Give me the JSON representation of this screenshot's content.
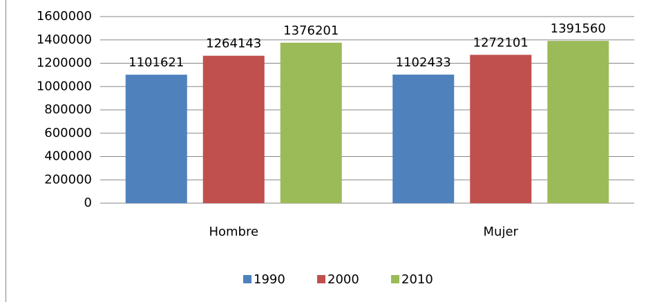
{
  "chart_data": {
    "type": "bar",
    "categories": [
      "Hombre",
      "Mujer"
    ],
    "series": [
      {
        "name": "1990",
        "color": "#4f81bd",
        "values": [
          1101621,
          1102433
        ]
      },
      {
        "name": "2000",
        "color": "#c0504d",
        "values": [
          1264143,
          1272101
        ]
      },
      {
        "name": "2010",
        "color": "#9bbb59",
        "values": [
          1376201,
          1391560
        ]
      }
    ],
    "ylim": [
      0,
      1600000
    ],
    "yticks": [
      0,
      200000,
      400000,
      600000,
      800000,
      1000000,
      1200000,
      1400000,
      1600000
    ],
    "grid": true,
    "legend": "bottom",
    "data_labels": true
  }
}
